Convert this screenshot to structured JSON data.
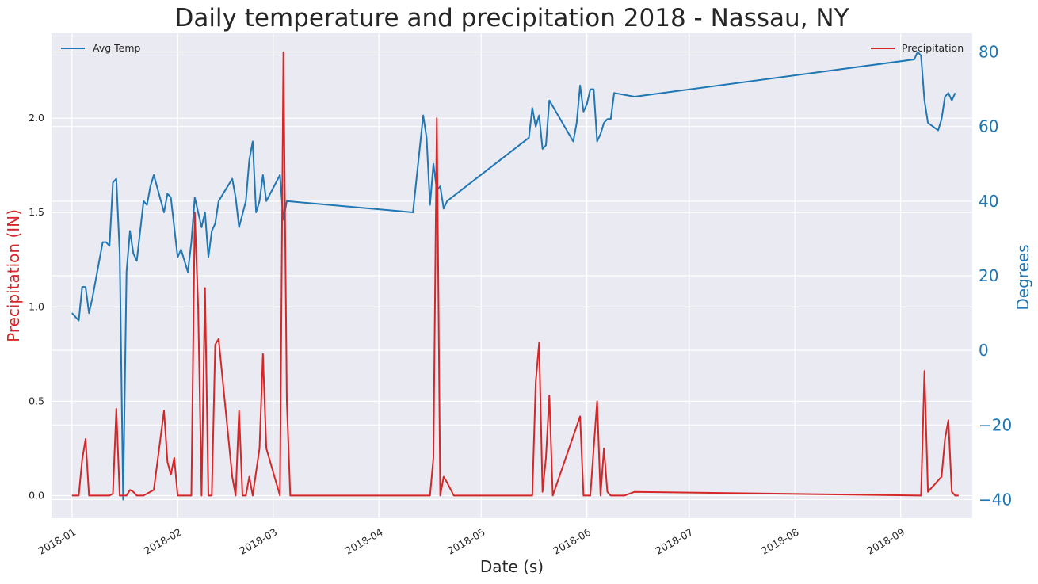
{
  "chart_data": {
    "type": "line",
    "title": "Daily temperature and precipitation 2018 - Nassau, NY",
    "xlabel": "Date (s)",
    "ylabel_left": "Precipitation (IN)",
    "ylabel_right": "Degrees",
    "xlim": [
      "2017-12-26",
      "2018-09-22"
    ],
    "ylim_left": [
      -0.12,
      2.45
    ],
    "ylim_right": [
      -45,
      85
    ],
    "x_ticks": [
      "2018-01",
      "2018-02",
      "2018-03",
      "2018-04",
      "2018-05",
      "2018-06",
      "2018-07",
      "2018-08",
      "2018-09"
    ],
    "y_ticks_left": [
      "0.0",
      "0.5",
      "1.0",
      "1.5",
      "2.0"
    ],
    "y_ticks_right": [
      "−40",
      "−20",
      "0",
      "20",
      "40",
      "60",
      "80"
    ],
    "grid": true,
    "colors": {
      "temp": "#1f77b4",
      "precip": "#d62728",
      "background": "#eaeaf2",
      "grid": "#ffffff"
    },
    "legend_temp": {
      "label": "Avg Temp",
      "placement": "top-left"
    },
    "legend_precip": {
      "label": "Precipitation",
      "placement": "top-right"
    },
    "series": [
      {
        "name": "Avg Temp",
        "axis": "right",
        "points": [
          [
            "2018-01-01",
            10
          ],
          [
            "2018-01-02",
            9
          ],
          [
            "2018-01-03",
            8
          ],
          [
            "2018-01-04",
            17
          ],
          [
            "2018-01-05",
            17
          ],
          [
            "2018-01-06",
            10
          ],
          [
            "2018-01-07",
            14
          ],
          [
            "2018-01-10",
            29
          ],
          [
            "2018-01-11",
            29
          ],
          [
            "2018-01-12",
            28
          ],
          [
            "2018-01-13",
            45
          ],
          [
            "2018-01-14",
            46
          ],
          [
            "2018-01-15",
            26
          ],
          [
            "2018-01-16",
            -40
          ],
          [
            "2018-01-17",
            21
          ],
          [
            "2018-01-18",
            32
          ],
          [
            "2018-01-19",
            26
          ],
          [
            "2018-01-20",
            24
          ],
          [
            "2018-01-22",
            40
          ],
          [
            "2018-01-23",
            39
          ],
          [
            "2018-01-24",
            44
          ],
          [
            "2018-01-25",
            47
          ],
          [
            "2018-01-28",
            37
          ],
          [
            "2018-01-29",
            42
          ],
          [
            "2018-01-30",
            41
          ],
          [
            "2018-02-01",
            25
          ],
          [
            "2018-02-02",
            27
          ],
          [
            "2018-02-04",
            21
          ],
          [
            "2018-02-05",
            29
          ],
          [
            "2018-02-06",
            41
          ],
          [
            "2018-02-08",
            33
          ],
          [
            "2018-02-09",
            37
          ],
          [
            "2018-02-10",
            25
          ],
          [
            "2018-02-11",
            32
          ],
          [
            "2018-02-12",
            34
          ],
          [
            "2018-02-13",
            40
          ],
          [
            "2018-02-17",
            46
          ],
          [
            "2018-02-18",
            41
          ],
          [
            "2018-02-19",
            33
          ],
          [
            "2018-02-21",
            40
          ],
          [
            "2018-02-22",
            51
          ],
          [
            "2018-02-23",
            56
          ],
          [
            "2018-02-24",
            37
          ],
          [
            "2018-02-25",
            40
          ],
          [
            "2018-02-26",
            47
          ],
          [
            "2018-02-27",
            40
          ],
          [
            "2018-03-03",
            47
          ],
          [
            "2018-03-04",
            35
          ],
          [
            "2018-03-05",
            40
          ],
          [
            "2018-04-11",
            37
          ],
          [
            "2018-04-14",
            63
          ],
          [
            "2018-04-15",
            57
          ],
          [
            "2018-04-16",
            39
          ],
          [
            "2018-04-17",
            50
          ],
          [
            "2018-04-18",
            43
          ],
          [
            "2018-04-19",
            44
          ],
          [
            "2018-04-20",
            38
          ],
          [
            "2018-04-21",
            40
          ],
          [
            "2018-05-15",
            57
          ],
          [
            "2018-05-16",
            65
          ],
          [
            "2018-05-17",
            60
          ],
          [
            "2018-05-18",
            63
          ],
          [
            "2018-05-19",
            54
          ],
          [
            "2018-05-20",
            55
          ],
          [
            "2018-05-21",
            67
          ],
          [
            "2018-05-28",
            56
          ],
          [
            "2018-05-29",
            61
          ],
          [
            "2018-05-30",
            71
          ],
          [
            "2018-05-31",
            64
          ],
          [
            "2018-06-01",
            66
          ],
          [
            "2018-06-02",
            70
          ],
          [
            "2018-06-03",
            70
          ],
          [
            "2018-06-04",
            56
          ],
          [
            "2018-06-05",
            58
          ],
          [
            "2018-06-06",
            61
          ],
          [
            "2018-06-07",
            62
          ],
          [
            "2018-06-08",
            62
          ],
          [
            "2018-06-09",
            69
          ],
          [
            "2018-06-15",
            68
          ],
          [
            "2018-09-05",
            78
          ],
          [
            "2018-09-06",
            80
          ],
          [
            "2018-09-07",
            79
          ],
          [
            "2018-09-08",
            67
          ],
          [
            "2018-09-09",
            61
          ],
          [
            "2018-09-12",
            59
          ],
          [
            "2018-09-13",
            62
          ],
          [
            "2018-09-14",
            68
          ],
          [
            "2018-09-15",
            69
          ],
          [
            "2018-09-16",
            67
          ],
          [
            "2018-09-17",
            69
          ]
        ]
      },
      {
        "name": "Precipitation",
        "axis": "left",
        "points": [
          [
            "2018-01-01",
            0.0
          ],
          [
            "2018-01-03",
            0.0
          ],
          [
            "2018-01-04",
            0.19
          ],
          [
            "2018-01-05",
            0.3
          ],
          [
            "2018-01-06",
            0.0
          ],
          [
            "2018-01-12",
            0.0
          ],
          [
            "2018-01-13",
            0.01
          ],
          [
            "2018-01-14",
            0.46
          ],
          [
            "2018-01-15",
            0.0
          ],
          [
            "2018-01-17",
            0.0
          ],
          [
            "2018-01-18",
            0.03
          ],
          [
            "2018-01-19",
            0.02
          ],
          [
            "2018-01-20",
            0.0
          ],
          [
            "2018-01-22",
            0.0
          ],
          [
            "2018-01-25",
            0.03
          ],
          [
            "2018-01-28",
            0.45
          ],
          [
            "2018-01-29",
            0.18
          ],
          [
            "2018-01-30",
            0.11
          ],
          [
            "2018-01-31",
            0.2
          ],
          [
            "2018-02-01",
            0.0
          ],
          [
            "2018-02-05",
            0.0
          ],
          [
            "2018-02-06",
            1.5
          ],
          [
            "2018-02-07",
            1.0
          ],
          [
            "2018-02-08",
            0.0
          ],
          [
            "2018-02-09",
            1.1
          ],
          [
            "2018-02-10",
            0.0
          ],
          [
            "2018-02-11",
            0.0
          ],
          [
            "2018-02-12",
            0.8
          ],
          [
            "2018-02-13",
            0.83
          ],
          [
            "2018-02-17",
            0.1
          ],
          [
            "2018-02-18",
            0.0
          ],
          [
            "2018-02-19",
            0.45
          ],
          [
            "2018-02-20",
            0.0
          ],
          [
            "2018-02-21",
            0.0
          ],
          [
            "2018-02-22",
            0.1
          ],
          [
            "2018-02-23",
            0.0
          ],
          [
            "2018-02-25",
            0.25
          ],
          [
            "2018-02-26",
            0.75
          ],
          [
            "2018-02-27",
            0.25
          ],
          [
            "2018-03-03",
            0.0
          ],
          [
            "2018-03-04",
            2.35
          ],
          [
            "2018-03-05",
            0.5
          ],
          [
            "2018-03-06",
            0.0
          ],
          [
            "2018-04-16",
            0.0
          ],
          [
            "2018-04-17",
            0.2
          ],
          [
            "2018-04-18",
            2.0
          ],
          [
            "2018-04-19",
            0.0
          ],
          [
            "2018-04-20",
            0.1
          ],
          [
            "2018-04-21",
            0.07
          ],
          [
            "2018-04-23",
            0.0
          ],
          [
            "2018-05-16",
            0.0
          ],
          [
            "2018-05-17",
            0.6
          ],
          [
            "2018-05-18",
            0.81
          ],
          [
            "2018-05-19",
            0.02
          ],
          [
            "2018-05-20",
            0.2
          ],
          [
            "2018-05-21",
            0.53
          ],
          [
            "2018-05-22",
            0.0
          ],
          [
            "2018-05-30",
            0.42
          ],
          [
            "2018-05-31",
            0.0
          ],
          [
            "2018-06-02",
            0.0
          ],
          [
            "2018-06-04",
            0.5
          ],
          [
            "2018-06-05",
            0.0
          ],
          [
            "2018-06-06",
            0.25
          ],
          [
            "2018-06-07",
            0.02
          ],
          [
            "2018-06-08",
            0.0
          ],
          [
            "2018-06-12",
            0.0
          ],
          [
            "2018-06-15",
            0.02
          ],
          [
            "2018-09-07",
            0.0
          ],
          [
            "2018-09-08",
            0.66
          ],
          [
            "2018-09-09",
            0.02
          ],
          [
            "2018-09-13",
            0.1
          ],
          [
            "2018-09-14",
            0.3
          ],
          [
            "2018-09-15",
            0.4
          ],
          [
            "2018-09-16",
            0.02
          ],
          [
            "2018-09-17",
            0.0
          ],
          [
            "2018-09-18",
            0.0
          ]
        ]
      }
    ]
  }
}
